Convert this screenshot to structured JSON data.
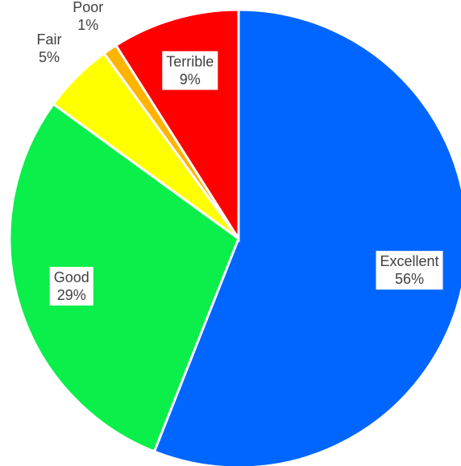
{
  "chart_data": {
    "type": "pie",
    "categories": [
      "Excellent",
      "Good",
      "Fair",
      "Poor",
      "Terrible"
    ],
    "values": [
      56,
      29,
      5,
      1,
      9
    ],
    "value_labels": [
      "56%",
      "29%",
      "5%",
      "1%",
      "9%"
    ],
    "colors": [
      "#0066ff",
      "#0aef4a",
      "#ffff00",
      "#ffb400",
      "#ff0000"
    ]
  }
}
